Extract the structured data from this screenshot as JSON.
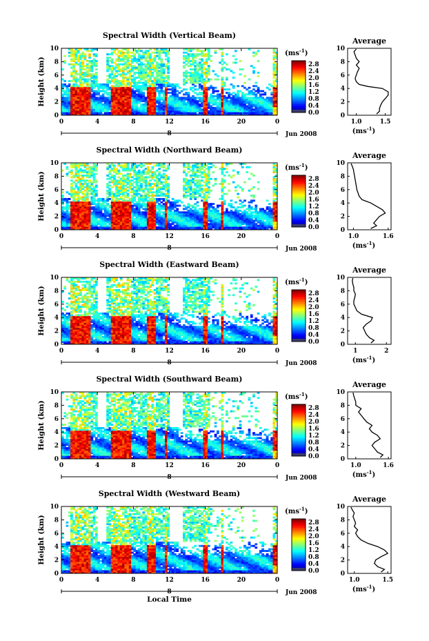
{
  "figure": {
    "xlabel": "Local Time",
    "date_label": "Jun 2008",
    "day_marker": "8",
    "colorbar_unit": "(ms",
    "colorbar_unit_sup": "-1",
    "colorbar_unit_end": ")"
  },
  "chart_data": [
    {
      "type": "heatmap",
      "title": "Spectral Width (Vertical Beam)",
      "ylabel": "Height (km)",
      "xlabel": "Local Time",
      "x_ticks": [
        "0",
        "4",
        "8",
        "12",
        "16",
        "20",
        "0"
      ],
      "y_ticks": [
        "0",
        "2",
        "4",
        "6",
        "8",
        "10"
      ],
      "xlim": [
        0,
        24
      ],
      "ylim": [
        0,
        10
      ],
      "colorbar": {
        "ticks": [
          "0.0",
          "0.4",
          "0.8",
          "1.2",
          "1.6",
          "2.0",
          "2.4",
          "2.8"
        ],
        "range": [
          0,
          3.0
        ]
      },
      "average_profile": {
        "title": "Average",
        "xlabel": "(ms",
        "x_ticks": [
          "1.0",
          "1.5"
        ],
        "xlim": [
          0.85,
          1.6
        ],
        "height": [
          0.2,
          0.6,
          1.0,
          1.5,
          2.0,
          2.5,
          3.0,
          3.5,
          4.0,
          4.3,
          4.6,
          5.0,
          5.5,
          6.0,
          6.5,
          7.0,
          7.5,
          8.0,
          8.5,
          9.0,
          9.5,
          9.9
        ],
        "values": [
          1.35,
          1.4,
          1.4,
          1.42,
          1.45,
          1.5,
          1.55,
          1.55,
          1.45,
          1.2,
          1.05,
          1.0,
          0.98,
          1.0,
          1.02,
          1.05,
          1.0,
          1.05,
          1.0,
          0.98,
          0.96,
          1.0
        ]
      }
    },
    {
      "type": "heatmap",
      "title": "Spectral Width (Northward Beam)",
      "ylabel": "Height (km)",
      "xlabel": "Local Time",
      "x_ticks": [
        "0",
        "4",
        "8",
        "12",
        "16",
        "20",
        "0"
      ],
      "y_ticks": [
        "0",
        "2",
        "4",
        "6",
        "8",
        "10"
      ],
      "xlim": [
        0,
        24
      ],
      "ylim": [
        0,
        10
      ],
      "colorbar": {
        "ticks": [
          "0.0",
          "0.4",
          "0.8",
          "1.2",
          "1.6",
          "2.0",
          "2.4",
          "2.8"
        ],
        "range": [
          0,
          3.0
        ]
      },
      "average_profile": {
        "title": "Average",
        "xlabel": "(ms",
        "x_ticks": [
          "1.0",
          "1.6"
        ],
        "xlim": [
          0.9,
          1.65
        ],
        "height": [
          0.2,
          0.6,
          1.0,
          1.5,
          2.0,
          2.5,
          3.0,
          3.5,
          4.0,
          4.5,
          5.0,
          5.5,
          6.0,
          6.5,
          7.0,
          7.5,
          8.0,
          8.5,
          9.0,
          9.5,
          9.9
        ],
        "values": [
          1.3,
          1.4,
          1.35,
          1.4,
          1.45,
          1.55,
          1.5,
          1.4,
          1.3,
          1.15,
          1.1,
          1.08,
          1.06,
          1.05,
          1.04,
          1.03,
          1.02,
          1.01,
          1.0,
          0.98,
          0.96
        ]
      }
    },
    {
      "type": "heatmap",
      "title": "Spectral Width (Eastward Beam)",
      "ylabel": "Height (km)",
      "xlabel": "Local Time",
      "x_ticks": [
        "0",
        "4",
        "8",
        "12",
        "16",
        "20",
        "0"
      ],
      "y_ticks": [
        "0",
        "2",
        "4",
        "6",
        "8",
        "10"
      ],
      "xlim": [
        0,
        24
      ],
      "ylim": [
        0,
        10
      ],
      "colorbar": {
        "ticks": [
          "0.0",
          "0.4",
          "0.8",
          "1.2",
          "1.6",
          "2.0",
          "2.4",
          "2.8"
        ],
        "range": [
          0,
          3.0
        ]
      },
      "average_profile": {
        "title": "Average",
        "xlabel": "(ms",
        "x_ticks": [
          "1",
          "2"
        ],
        "xlim": [
          0.75,
          2.15
        ],
        "height": [
          0.2,
          0.6,
          1.0,
          1.5,
          2.0,
          2.5,
          3.0,
          3.5,
          4.0,
          4.5,
          5.0,
          5.5,
          6.0,
          6.5,
          7.0,
          7.5,
          8.0,
          8.5,
          9.0,
          9.5,
          9.9
        ],
        "values": [
          1.5,
          1.6,
          1.45,
          1.35,
          1.3,
          1.25,
          1.35,
          1.5,
          1.55,
          1.2,
          1.05,
          1.0,
          0.95,
          0.95,
          0.98,
          1.0,
          0.95,
          0.95,
          0.92,
          0.9,
          0.92
        ]
      }
    },
    {
      "type": "heatmap",
      "title": "Spectral Width (Southward Beam)",
      "ylabel": "Height (km)",
      "xlabel": "Local Time",
      "x_ticks": [
        "0",
        "4",
        "8",
        "12",
        "16",
        "20",
        "0"
      ],
      "y_ticks": [
        "0",
        "2",
        "4",
        "6",
        "8",
        "10"
      ],
      "xlim": [
        0,
        24
      ],
      "ylim": [
        0,
        10
      ],
      "colorbar": {
        "ticks": [
          "0.0",
          "0.4",
          "0.8",
          "1.2",
          "1.6",
          "2.0",
          "2.4",
          "2.8"
        ],
        "range": [
          0,
          3.0
        ]
      },
      "average_profile": {
        "title": "Average",
        "xlabel": "(ms",
        "x_ticks": [
          "1.0",
          "1.6"
        ],
        "xlim": [
          0.85,
          1.65
        ],
        "height": [
          0.2,
          0.6,
          1.0,
          1.5,
          2.0,
          2.5,
          3.0,
          3.5,
          4.0,
          4.5,
          5.0,
          5.5,
          6.0,
          6.5,
          7.0,
          7.5,
          8.0,
          8.5,
          9.0,
          9.5,
          9.9
        ],
        "values": [
          1.45,
          1.5,
          1.4,
          1.35,
          1.3,
          1.35,
          1.45,
          1.4,
          1.3,
          1.25,
          1.3,
          1.2,
          1.15,
          1.1,
          1.05,
          1.1,
          1.0,
          1.0,
          0.98,
          0.96,
          0.95
        ]
      }
    },
    {
      "type": "heatmap",
      "title": "Spectral Width (Westward Beam)",
      "ylabel": "Height (km)",
      "xlabel": "Local Time",
      "x_ticks": [
        "0",
        "4",
        "8",
        "12",
        "16",
        "20",
        "0"
      ],
      "y_ticks": [
        "0",
        "2",
        "4",
        "6",
        "8",
        "10"
      ],
      "xlim": [
        0,
        24
      ],
      "ylim": [
        0,
        10
      ],
      "colorbar": {
        "ticks": [
          "0.0",
          "0.4",
          "0.8",
          "1.2",
          "1.6",
          "2.0",
          "2.4",
          "2.8"
        ],
        "range": [
          0,
          3.0
        ]
      },
      "average_profile": {
        "title": "Average",
        "xlabel": "(ms",
        "x_ticks": [
          "1.0",
          "1.5"
        ],
        "xlim": [
          0.9,
          1.55
        ],
        "height": [
          0.2,
          0.6,
          1.0,
          1.5,
          2.0,
          2.5,
          3.0,
          3.5,
          4.0,
          4.5,
          5.0,
          5.5,
          6.0,
          6.5,
          7.0,
          7.5,
          8.0,
          8.5,
          9.0,
          9.5,
          9.9
        ],
        "values": [
          1.4,
          1.45,
          1.35,
          1.3,
          1.32,
          1.4,
          1.5,
          1.45,
          1.35,
          1.2,
          1.1,
          1.05,
          1.02,
          1.05,
          1.0,
          1.02,
          1.0,
          0.98,
          1.0,
          0.97,
          0.95
        ]
      }
    }
  ]
}
